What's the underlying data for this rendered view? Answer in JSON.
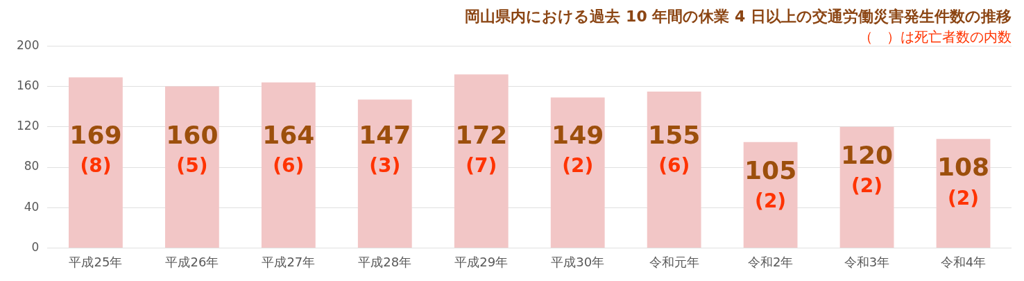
{
  "chart_data": {
    "type": "bar",
    "title": "岡山県内における過去 10 年間の休業 4 日以上の交通労働災害発生件数の推移",
    "subtitle": "（　）は死亡者数の内数",
    "categories": [
      "平成25年",
      "平成26年",
      "平成27年",
      "平成28年",
      "平成29年",
      "平成30年",
      "令和元年",
      "令和2年",
      "令和3年",
      "令和4年"
    ],
    "values": [
      169,
      160,
      164,
      147,
      172,
      149,
      155,
      105,
      120,
      108
    ],
    "color": "#f2c6c6",
    "ylim": [
      0,
      200
    ],
    "yticks": [
      0,
      40,
      80,
      120,
      160,
      200
    ],
    "grid": "y",
    "legend": false,
    "data_labels": true,
    "annotations": [
      "(8)",
      "(5)",
      "(6)",
      "(3)",
      "(7)",
      "(2)",
      "(6)",
      "(2)",
      "(2)",
      "(2)"
    ]
  }
}
